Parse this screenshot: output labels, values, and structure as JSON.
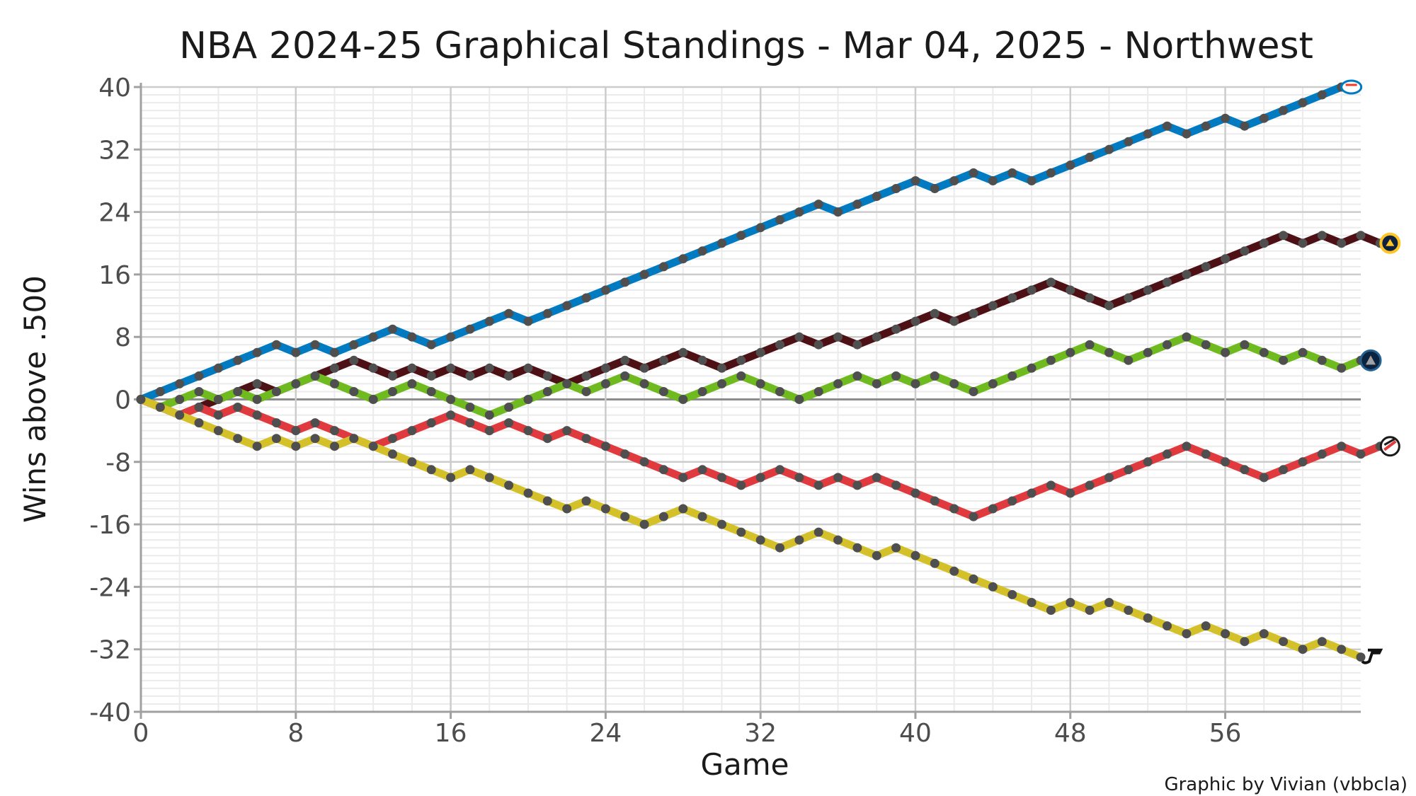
{
  "chart_data": {
    "type": "line",
    "title": "NBA 2024-25 Graphical Standings - Mar 04, 2025 - Northwest",
    "xlabel": "Game",
    "ylabel": "Wins above .500",
    "caption": "Graphic by Vivian (vbbcla)",
    "xlim": [
      0,
      63
    ],
    "ylim": [
      -40,
      40
    ],
    "x_ticks": [
      0,
      8,
      16,
      24,
      32,
      40,
      48,
      56
    ],
    "y_ticks": [
      40,
      32,
      24,
      16,
      8,
      0,
      -8,
      -16,
      -24,
      -32,
      -40
    ],
    "grid": true,
    "legend": "none",
    "series": [
      {
        "color": "#007ac1",
        "end_icon": "thunder-logo-icon",
        "steps": [
          1,
          1,
          1,
          1,
          1,
          1,
          1,
          -1,
          1,
          -1,
          1,
          1,
          1,
          -1,
          -1,
          1,
          1,
          1,
          1,
          -1,
          1,
          1,
          1,
          1,
          1,
          1,
          1,
          1,
          1,
          1,
          1,
          1,
          1,
          1,
          1,
          -1,
          1,
          1,
          1,
          1,
          -1,
          1,
          1,
          -1,
          1,
          -1,
          1,
          1,
          1,
          1,
          1,
          1,
          1,
          -1,
          1,
          1,
          -1,
          1,
          1,
          1,
          1,
          1
        ]
      },
      {
        "color": "#4d1014",
        "end_icon": "nuggets-logo-icon",
        "steps": [
          -1,
          -1,
          1,
          1,
          1,
          1,
          -1,
          1,
          1,
          1,
          1,
          -1,
          -1,
          1,
          -1,
          1,
          -1,
          1,
          -1,
          1,
          -1,
          -1,
          1,
          1,
          1,
          -1,
          1,
          1,
          -1,
          -1,
          1,
          1,
          1,
          1,
          -1,
          1,
          -1,
          1,
          1,
          1,
          1,
          -1,
          1,
          1,
          1,
          1,
          1,
          -1,
          -1,
          -1,
          1,
          1,
          1,
          1,
          1,
          1,
          1,
          1,
          1,
          -1,
          1,
          -1,
          1,
          -1
        ]
      },
      {
        "color": "#6fba1f",
        "end_icon": "timberwolves-logo-icon",
        "steps": [
          -1,
          1,
          1,
          -1,
          1,
          -1,
          1,
          1,
          1,
          -1,
          -1,
          -1,
          1,
          1,
          -1,
          -1,
          -1,
          -1,
          1,
          1,
          1,
          1,
          -1,
          1,
          1,
          -1,
          -1,
          -1,
          1,
          1,
          1,
          -1,
          -1,
          -1,
          1,
          1,
          1,
          -1,
          1,
          -1,
          1,
          -1,
          -1,
          1,
          1,
          1,
          1,
          1,
          1,
          -1,
          -1,
          1,
          1,
          1,
          -1,
          -1,
          1,
          -1,
          -1,
          1,
          -1,
          -1,
          1
        ]
      },
      {
        "color": "#e03a3e",
        "end_icon": "blazers-logo-icon",
        "steps": [
          -1,
          -1,
          1,
          -1,
          1,
          -1,
          -1,
          -1,
          1,
          -1,
          -1,
          -1,
          1,
          1,
          1,
          1,
          -1,
          -1,
          1,
          -1,
          -1,
          1,
          -1,
          -1,
          -1,
          -1,
          -1,
          -1,
          1,
          -1,
          -1,
          1,
          1,
          -1,
          -1,
          1,
          -1,
          1,
          -1,
          -1,
          -1,
          -1,
          -1,
          1,
          1,
          1,
          1,
          -1,
          1,
          1,
          1,
          1,
          1,
          1,
          -1,
          -1,
          -1,
          -1,
          1,
          1,
          1,
          1,
          -1,
          1
        ]
      },
      {
        "color": "#d4c12a",
        "end_icon": "jazz-logo-icon",
        "steps": [
          -1,
          -1,
          -1,
          -1,
          -1,
          -1,
          1,
          -1,
          1,
          -1,
          1,
          -1,
          -1,
          -1,
          -1,
          -1,
          1,
          -1,
          -1,
          -1,
          -1,
          -1,
          1,
          -1,
          -1,
          -1,
          1,
          1,
          -1,
          -1,
          -1,
          -1,
          -1,
          1,
          1,
          -1,
          -1,
          -1,
          1,
          -1,
          -1,
          -1,
          -1,
          -1,
          -1,
          -1,
          -1,
          1,
          -1,
          1,
          -1,
          -1,
          -1,
          -1,
          1,
          -1,
          -1,
          1,
          -1,
          -1,
          1,
          -1,
          -1
        ]
      }
    ]
  }
}
